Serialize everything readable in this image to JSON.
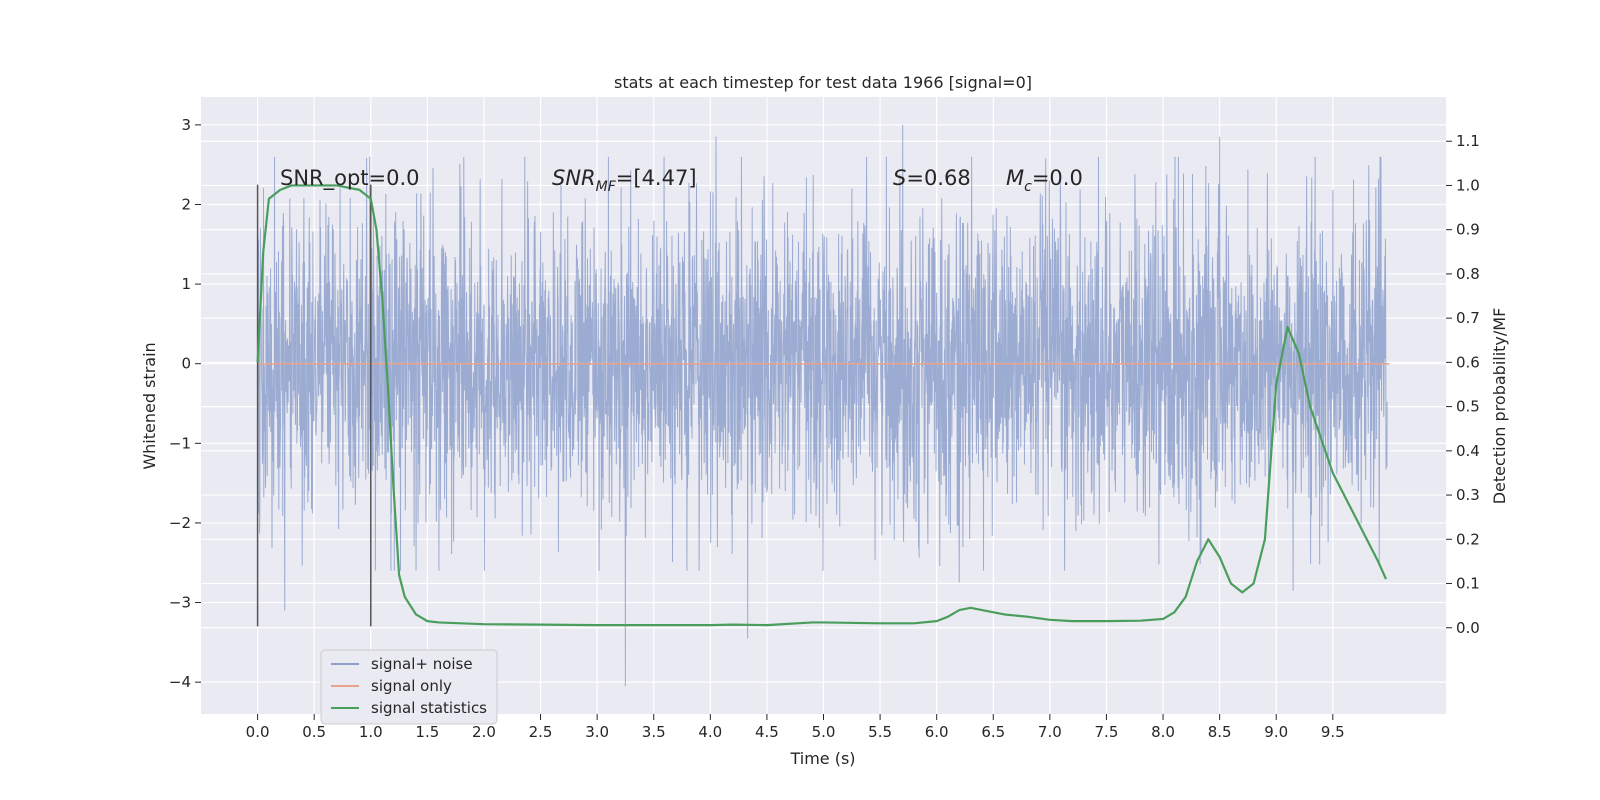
{
  "chart_data": {
    "type": "line",
    "title": "stats at each timestep for test data 1966 [signal=0]",
    "xlabel": "Time (s)",
    "ylabel": "Whitened strain",
    "y2label": "Detection probability/MF",
    "xlim": [
      -0.5,
      10.5
    ],
    "ylim": [
      -4.4,
      3.35
    ],
    "y2lim": [
      -0.195,
      1.2
    ],
    "x_ticks": [
      "0.0",
      "0.5",
      "1.0",
      "1.5",
      "2.0",
      "2.5",
      "3.0",
      "3.5",
      "4.0",
      "4.5",
      "5.0",
      "5.5",
      "6.0",
      "6.5",
      "7.0",
      "7.5",
      "8.0",
      "8.5",
      "9.0",
      "9.5"
    ],
    "y_ticks": [
      "3",
      "2",
      "1",
      "0",
      "−1",
      "−2",
      "−3",
      "−4"
    ],
    "y2_ticks": [
      "1.1",
      "1.0",
      "0.9",
      "0.8",
      "0.7",
      "0.6",
      "0.5",
      "0.4",
      "0.3",
      "0.2",
      "0.1",
      "0.0"
    ],
    "grid": true,
    "legend_position": "lower-left",
    "legend": [
      "signal+ noise",
      "signal only",
      "signal statistics"
    ],
    "colors": {
      "noise": "#8da0cb",
      "signal": "#e8a48a",
      "stats": "#4a9e5c",
      "background": "#eaeaf2",
      "grid": "#ffffff",
      "vline": "#555555"
    },
    "annotations": {
      "snr_opt": "SNR_opt=0.0",
      "snr_mf_main": "SNR",
      "snr_mf_sub": "MF",
      "snr_mf_value": "=[4.47]",
      "s_label": "S",
      "s_value": "=0.68",
      "mc_main": "M",
      "mc_sub": "c",
      "mc_value": "=0.0"
    },
    "vlines": [
      {
        "x": 0.0,
        "y_from": -3.3,
        "y_to": 2.25
      },
      {
        "x": 1.0,
        "y_from": -3.3,
        "y_to": 2.25
      }
    ],
    "noise_series": {
      "name": "signal+ noise",
      "x_range": [
        0.0,
        9.98
      ],
      "typical_amplitude": 1.0,
      "extremes": [
        {
          "x": 3.25,
          "y": -4.05
        },
        {
          "x": 4.33,
          "y": -3.45
        },
        {
          "x": 5.7,
          "y": 3.0
        },
        {
          "x": 4.05,
          "y": 2.85
        },
        {
          "x": 8.5,
          "y": 2.85
        },
        {
          "x": 0.24,
          "y": -3.1
        },
        {
          "x": 9.15,
          "y": -2.85
        },
        {
          "x": 6.2,
          "y": -2.75
        }
      ]
    },
    "signal_series": {
      "name": "signal only",
      "x": [
        0.0,
        10.0
      ],
      "y": [
        0.0,
        0.0
      ]
    },
    "stats_series": {
      "name": "signal statistics",
      "x": [
        0.0,
        0.05,
        0.1,
        0.2,
        0.3,
        0.5,
        0.7,
        0.9,
        1.0,
        1.05,
        1.1,
        1.15,
        1.2,
        1.25,
        1.3,
        1.4,
        1.5,
        1.6,
        1.8,
        2.0,
        2.5,
        3.0,
        3.5,
        4.0,
        4.2,
        4.5,
        4.9,
        5.0,
        5.5,
        5.8,
        6.0,
        6.1,
        6.2,
        6.3,
        6.4,
        6.6,
        6.8,
        7.0,
        7.2,
        7.5,
        7.8,
        8.0,
        8.1,
        8.2,
        8.3,
        8.4,
        8.5,
        8.6,
        8.7,
        8.8,
        8.9,
        9.0,
        9.1,
        9.2,
        9.3,
        9.5,
        9.7,
        9.9,
        9.97
      ],
      "y": [
        0.6,
        0.85,
        0.97,
        0.99,
        1.0,
        1.0,
        1.0,
        0.99,
        0.97,
        0.9,
        0.75,
        0.55,
        0.32,
        0.12,
        0.07,
        0.03,
        0.015,
        0.012,
        0.01,
        0.008,
        0.007,
        0.006,
        0.006,
        0.006,
        0.007,
        0.006,
        0.012,
        0.012,
        0.01,
        0.01,
        0.015,
        0.025,
        0.04,
        0.045,
        0.04,
        0.03,
        0.025,
        0.018,
        0.015,
        0.015,
        0.016,
        0.02,
        0.035,
        0.07,
        0.15,
        0.2,
        0.16,
        0.1,
        0.08,
        0.1,
        0.2,
        0.55,
        0.68,
        0.62,
        0.5,
        0.35,
        0.25,
        0.15,
        0.11
      ]
    }
  }
}
